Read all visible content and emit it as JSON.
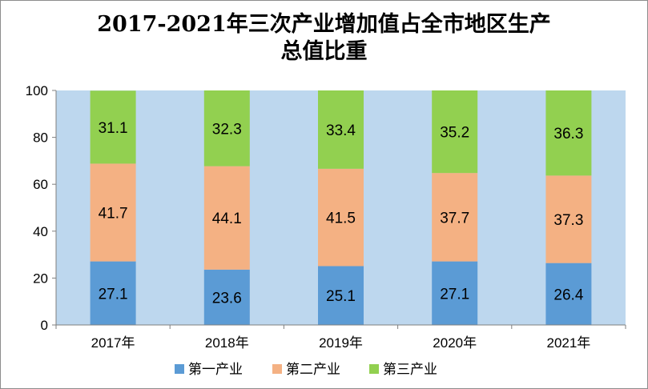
{
  "chart_data": {
    "type": "bar",
    "stacked": true,
    "title_line1": "2017-2021年三次产业增加值占全市地区生产",
    "title_line2": "总值比重",
    "categories": [
      "2017年",
      "2018年",
      "2019年",
      "2020年",
      "2021年"
    ],
    "series": [
      {
        "name": "第一产业",
        "color": "#5b9bd5",
        "values": [
          27.1,
          23.6,
          25.1,
          27.1,
          26.4
        ]
      },
      {
        "name": "第二产业",
        "color": "#f4b183",
        "values": [
          41.7,
          44.1,
          41.5,
          37.7,
          37.3
        ]
      },
      {
        "name": "第三产业",
        "color": "#92d050",
        "values": [
          31.1,
          32.3,
          33.4,
          35.2,
          36.3
        ]
      }
    ],
    "ylim": [
      0,
      100
    ],
    "yticks": [
      0,
      20,
      40,
      60,
      80,
      100
    ],
    "plot_background": "#bdd7ee",
    "legend_position": "bottom",
    "grid": false
  }
}
